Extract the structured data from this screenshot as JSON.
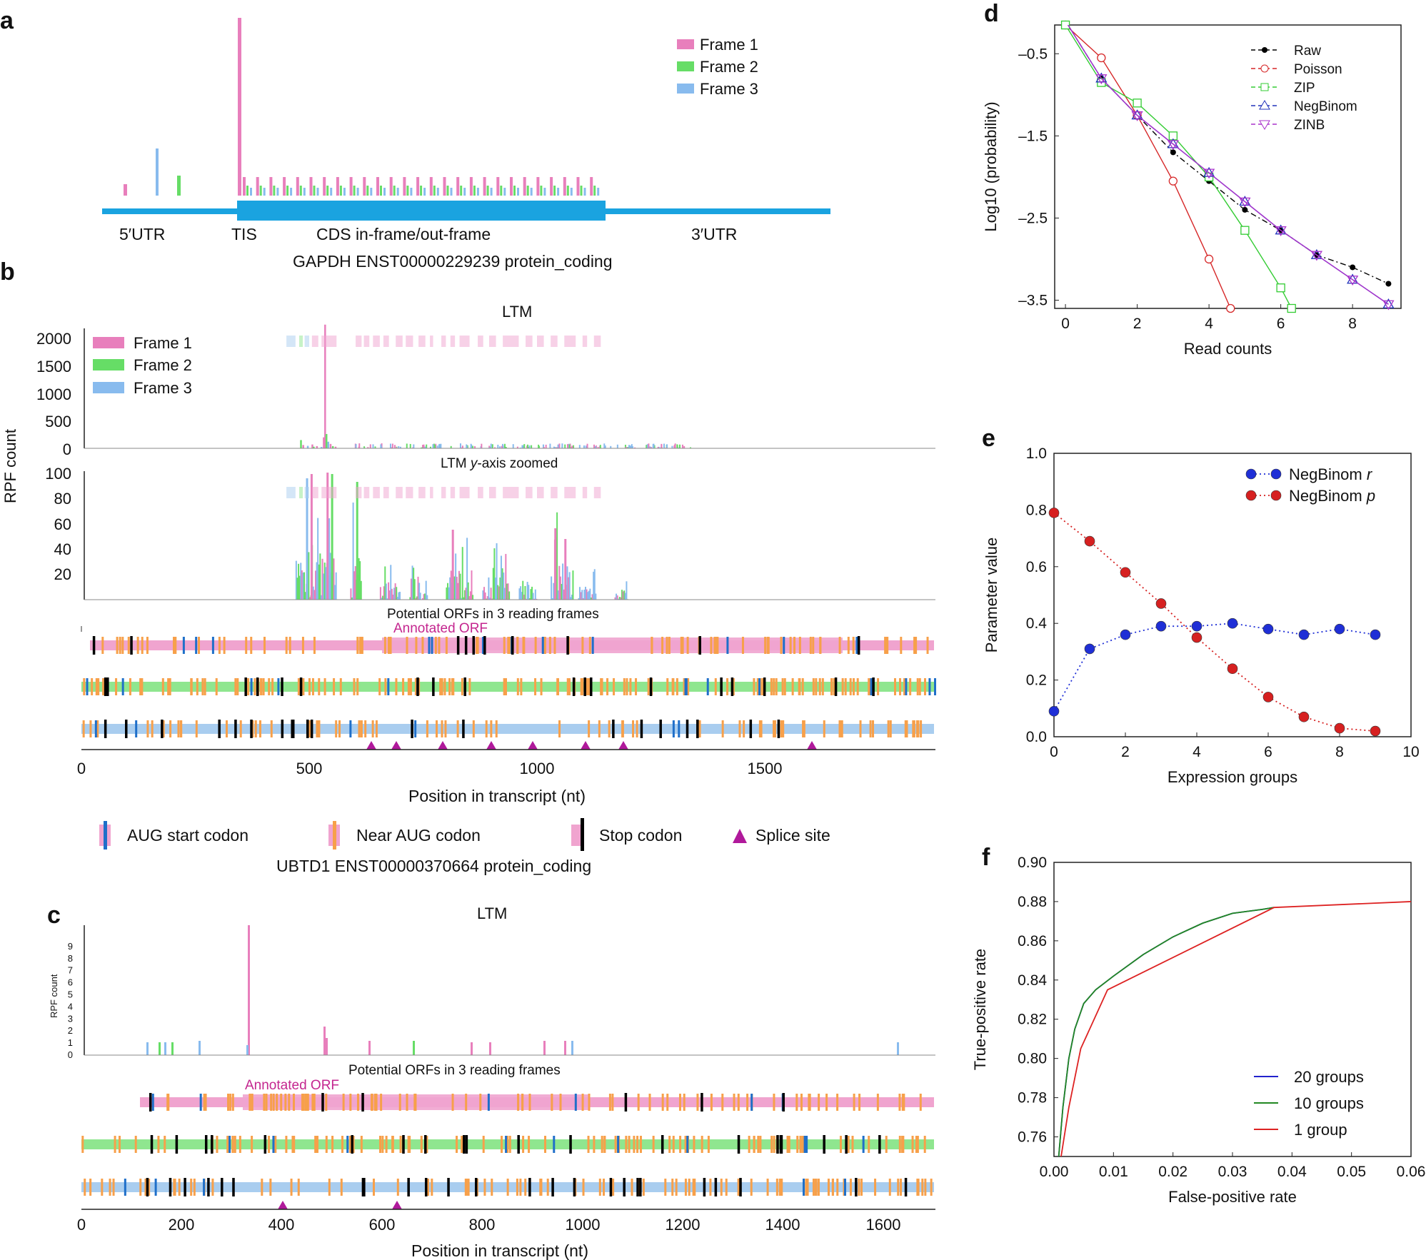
{
  "panels": {
    "a": {
      "letter": "a",
      "legend": [
        "Frame 1",
        "Frame 2",
        "Frame 3"
      ],
      "region_labels": [
        "5′UTR",
        "TIS",
        "CDS in-frame/out-frame",
        "3′UTR"
      ],
      "transcript": "GAPDH ENST00000229239 protein_coding"
    },
    "b": {
      "letter": "b",
      "title": "LTM",
      "ylabel": "RPF count",
      "upper_yticks": [
        "2000",
        "1500",
        "1000",
        "500",
        "0"
      ],
      "zoomed_title": "LTM",
      "zoomed_title_italic": "y",
      "zoomed_title_suffix": "-axis zoomed",
      "lower_yticks": [
        "100",
        "80",
        "60",
        "40",
        "20"
      ],
      "legend": [
        "Frame 1",
        "Frame 2",
        "Frame 3"
      ],
      "orf_title": "Potential ORFs in 3 reading frames",
      "annotated_orf": "Annotated ORF",
      "xticks": [
        "0",
        "500",
        "1000",
        "1500"
      ],
      "xlabel": "Position in transcript (nt)",
      "codon_legend": [
        "AUG start codon",
        "Near AUG codon",
        "Stop codon",
        "Splice site"
      ],
      "transcript": "UBTD1 ENST00000370664 protein_coding"
    },
    "c": {
      "letter": "c",
      "title": "LTM",
      "ylabel": "RPF count",
      "yticks": [
        "0",
        "1",
        "2",
        "3",
        "4",
        "5",
        "6",
        "7",
        "8",
        "9"
      ],
      "orf_title": "Potential ORFs in 3 reading frames",
      "annotated_orf": "Annotated ORF",
      "xticks": [
        "0",
        "200",
        "400",
        "600",
        "800",
        "1000",
        "1200",
        "1400",
        "1600"
      ],
      "xlabel": "Position in transcript (nt)"
    },
    "d": {
      "letter": "d"
    },
    "e": {
      "letter": "e"
    },
    "f": {
      "letter": "f"
    }
  },
  "colors": {
    "frame1": "#e87fbc",
    "frame2": "#66dd66",
    "frame3": "#88bbee",
    "utr": "#1aa3e0",
    "orf1": "#f0a4cf",
    "orf2": "#8fe68f",
    "orf3": "#a9cdef",
    "aug": "#1f6fc9",
    "near": "#f7a04a",
    "stop": "#000000",
    "splice": "#b0199b",
    "annot": "#c4268f"
  },
  "chart_data": [
    {
      "id": "d",
      "type": "line",
      "xlabel": "Read counts",
      "ylabel": "Log10 (probability)",
      "xlim": [
        -0.3,
        9.35
      ],
      "ylim": [
        -3.6,
        -0.15
      ],
      "xticks": [
        0,
        2,
        4,
        6,
        8
      ],
      "yticks": [
        -0.5,
        -1.5,
        -2.5,
        -3.5
      ],
      "ytick_labels": [
        "–0.5",
        "–1.5",
        "–2.5",
        "–3.5"
      ],
      "legend_position": "top-right",
      "series": [
        {
          "name": "Raw",
          "color": "#000000",
          "marker": "dot",
          "dash": "8,4,2,4",
          "x": [
            0,
            1,
            2,
            3,
            4,
            5,
            6,
            7,
            8,
            9
          ],
          "y": [
            -0.1,
            -0.8,
            -1.25,
            -1.7,
            -2.05,
            -2.4,
            -2.65,
            -2.95,
            -3.1,
            -3.3
          ]
        },
        {
          "name": "Poisson",
          "color": "#d62728",
          "marker": "circle",
          "dash": "",
          "x": [
            0,
            1,
            2,
            3,
            4,
            4.6
          ],
          "y": [
            -0.15,
            -0.55,
            -1.25,
            -2.05,
            -3.0,
            -3.6
          ]
        },
        {
          "name": "ZIP",
          "color": "#33cc33",
          "marker": "square",
          "dash": "",
          "x": [
            0,
            1,
            2,
            3,
            4,
            5,
            6,
            6.3
          ],
          "y": [
            -0.15,
            -0.85,
            -1.1,
            -1.5,
            -2.0,
            -2.65,
            -3.35,
            -3.6
          ]
        },
        {
          "name": "NegBinom",
          "color": "#2233bb",
          "marker": "triangle-up",
          "dash": "",
          "x": [
            0,
            1,
            2,
            3,
            4,
            5,
            6,
            7,
            8,
            9
          ],
          "y": [
            -0.1,
            -0.8,
            -1.25,
            -1.6,
            -1.95,
            -2.3,
            -2.65,
            -2.95,
            -3.25,
            -3.55
          ]
        },
        {
          "name": "ZINB",
          "color": "#aa33cc",
          "marker": "triangle-down",
          "dash": "",
          "x": [
            0,
            1,
            2,
            3,
            4,
            5,
            6,
            7,
            8,
            9
          ],
          "y": [
            -0.1,
            -0.8,
            -1.25,
            -1.6,
            -1.95,
            -2.3,
            -2.65,
            -2.95,
            -3.25,
            -3.55
          ]
        }
      ]
    },
    {
      "id": "e",
      "type": "scatter",
      "xlabel": "Expression groups",
      "ylabel": "Parameter value",
      "xlim": [
        0,
        10
      ],
      "ylim": [
        0,
        1
      ],
      "xticks": [
        0,
        2,
        4,
        6,
        8,
        10
      ],
      "yticks": [
        0.0,
        0.2,
        0.4,
        0.6,
        0.8,
        1.0
      ],
      "ytick_labels": [
        "0.0",
        "0.2",
        "0.4",
        "0.6",
        "0.8",
        "1.0"
      ],
      "legend_position": "top-right",
      "series": [
        {
          "name": "NegBinom",
          "name_italic": "r",
          "color": "#1f2fd6",
          "x": [
            0,
            1,
            2,
            3,
            4,
            5,
            6,
            7,
            8,
            9
          ],
          "y": [
            0.09,
            0.31,
            0.36,
            0.39,
            0.39,
            0.4,
            0.38,
            0.36,
            0.38,
            0.36
          ]
        },
        {
          "name": "NegBinom",
          "name_italic": "p",
          "color": "#d62020",
          "x": [
            0,
            1,
            2,
            3,
            4,
            5,
            6,
            7,
            8,
            9
          ],
          "y": [
            0.79,
            0.69,
            0.58,
            0.47,
            0.35,
            0.24,
            0.14,
            0.07,
            0.03,
            0.02
          ]
        }
      ]
    },
    {
      "id": "f",
      "type": "line",
      "xlabel": "False-positive rate",
      "ylabel": "True-positive rate",
      "xlim": [
        0,
        0.06
      ],
      "ylim": [
        0.75,
        0.9
      ],
      "xticks": [
        0,
        0.01,
        0.02,
        0.03,
        0.04,
        0.05,
        0.06
      ],
      "xtick_labels": [
        "0.00",
        "0.01",
        "0.02",
        "0.03",
        "0.04",
        "0.05",
        "0.06"
      ],
      "yticks": [
        0.76,
        0.78,
        0.8,
        0.82,
        0.84,
        0.86,
        0.88,
        0.9
      ],
      "ytick_labels": [
        "0.76",
        "0.78",
        "0.80",
        "0.82",
        "0.84",
        "0.86",
        "0.88",
        "0.90"
      ],
      "legend_position": "bottom-right",
      "series": [
        {
          "name": "20 groups",
          "color": "#2222cc",
          "x": [
            0.0008,
            0.0015,
            0.0025,
            0.0035,
            0.005,
            0.007,
            0.01,
            0.015,
            0.02,
            0.025,
            0.03,
            0.035,
            0.037
          ],
          "y": [
            0.75,
            0.775,
            0.8,
            0.815,
            0.828,
            0.835,
            0.842,
            0.853,
            0.862,
            0.869,
            0.874,
            0.876,
            0.877
          ]
        },
        {
          "name": "10 groups",
          "color": "#228822",
          "x": [
            0.0008,
            0.0015,
            0.0025,
            0.0035,
            0.005,
            0.007,
            0.01,
            0.015,
            0.02,
            0.025,
            0.03,
            0.035,
            0.037
          ],
          "y": [
            0.75,
            0.775,
            0.8,
            0.815,
            0.828,
            0.835,
            0.842,
            0.853,
            0.862,
            0.869,
            0.874,
            0.876,
            0.877
          ]
        },
        {
          "name": "1 group",
          "color": "#dd2222",
          "x": [
            0.0012,
            0.0025,
            0.0045,
            0.009,
            0.037,
            0.06
          ],
          "y": [
            0.75,
            0.775,
            0.805,
            0.835,
            0.877,
            0.88
          ]
        }
      ]
    }
  ]
}
